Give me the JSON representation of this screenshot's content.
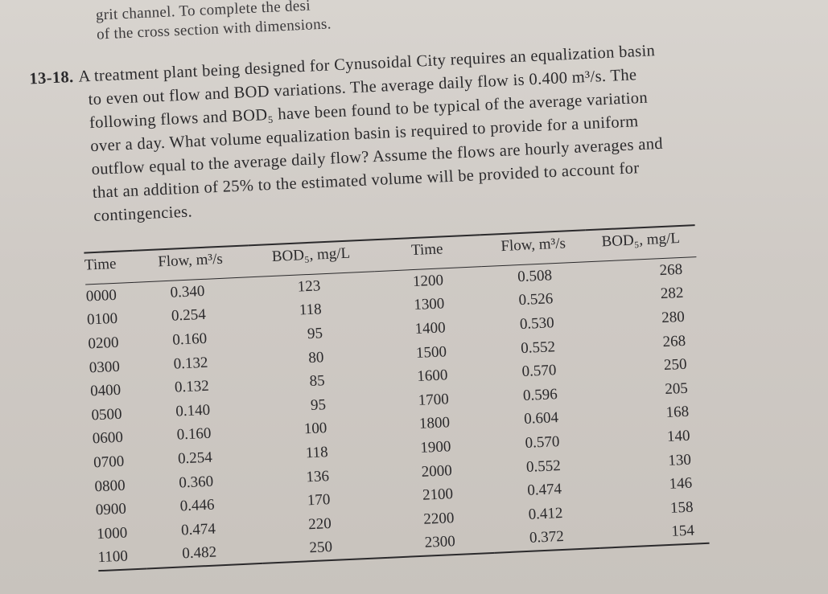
{
  "previous_problem": {
    "lines": [
      "grit channel. To complete the desi",
      "of the cross section with dimensions."
    ]
  },
  "problem": {
    "number": "13-18.",
    "lines": [
      "A treatment plant being designed for Cynusoidal City requires an equalization basin",
      "to even out flow and BOD variations. The average daily flow is 0.400 m³/s. The",
      "following flows and BOD₅ have been found to be typical of the average variation",
      "over a day. What volume equalization basin is required to provide for a uniform",
      "outflow equal to the average daily flow? Assume the flows are hourly averages and",
      "that an addition of 25% to the estimated volume will be provided to account for",
      "contingencies."
    ]
  },
  "table": {
    "headers": {
      "time": "Time",
      "flow": "Flow, m³/s",
      "bod": "BOD₅, mg/L",
      "time2": "Time",
      "flow2": "Flow, m³/s",
      "bod2": "BOD₅, mg/L"
    },
    "rows": [
      {
        "time": "0000",
        "flow": "0.340",
        "bod": "123",
        "time2": "1200",
        "flow2": "0.508",
        "bod2": "268"
      },
      {
        "time": "0100",
        "flow": "0.254",
        "bod": "118",
        "time2": "1300",
        "flow2": "0.526",
        "bod2": "282"
      },
      {
        "time": "0200",
        "flow": "0.160",
        "bod": "95",
        "time2": "1400",
        "flow2": "0.530",
        "bod2": "280"
      },
      {
        "time": "0300",
        "flow": "0.132",
        "bod": "80",
        "time2": "1500",
        "flow2": "0.552",
        "bod2": "268"
      },
      {
        "time": "0400",
        "flow": "0.132",
        "bod": "85",
        "time2": "1600",
        "flow2": "0.570",
        "bod2": "250"
      },
      {
        "time": "0500",
        "flow": "0.140",
        "bod": "95",
        "time2": "1700",
        "flow2": "0.596",
        "bod2": "205"
      },
      {
        "time": "0600",
        "flow": "0.160",
        "bod": "100",
        "time2": "1800",
        "flow2": "0.604",
        "bod2": "168"
      },
      {
        "time": "0700",
        "flow": "0.254",
        "bod": "118",
        "time2": "1900",
        "flow2": "0.570",
        "bod2": "140"
      },
      {
        "time": "0800",
        "flow": "0.360",
        "bod": "136",
        "time2": "2000",
        "flow2": "0.552",
        "bod2": "130"
      },
      {
        "time": "0900",
        "flow": "0.446",
        "bod": "170",
        "time2": "2100",
        "flow2": "0.474",
        "bod2": "146"
      },
      {
        "time": "1000",
        "flow": "0.474",
        "bod": "220",
        "time2": "2200",
        "flow2": "0.412",
        "bod2": "158"
      },
      {
        "time": "1100",
        "flow": "0.482",
        "bod": "250",
        "time2": "2300",
        "flow2": "0.372",
        "bod2": "154"
      }
    ]
  }
}
